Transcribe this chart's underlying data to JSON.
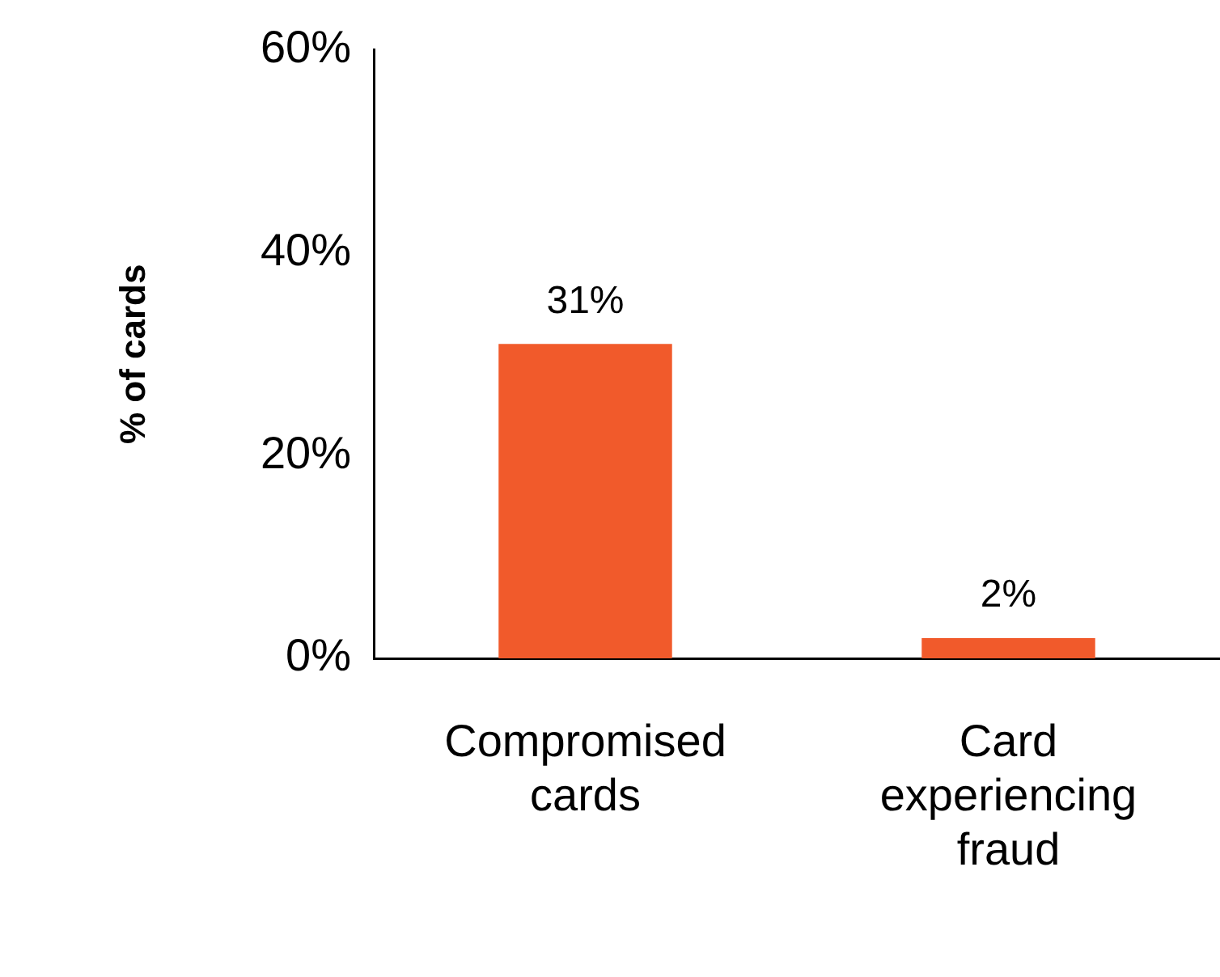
{
  "chart_data": {
    "type": "bar",
    "ylabel": "% of cards",
    "categories": [
      "Compromised cards",
      "Card experiencing fraud"
    ],
    "values": [
      31,
      2
    ],
    "color": "#f15a2b",
    "value_labels": [
      "31%",
      "2%"
    ],
    "ylim": [
      0,
      60
    ],
    "yticks": [
      {
        "value": 0,
        "label": "0%"
      },
      {
        "value": 20,
        "label": "20%"
      },
      {
        "value": 40,
        "label": "40%"
      },
      {
        "value": 60,
        "label": "60%"
      }
    ],
    "grid": false,
    "legend": false
  }
}
